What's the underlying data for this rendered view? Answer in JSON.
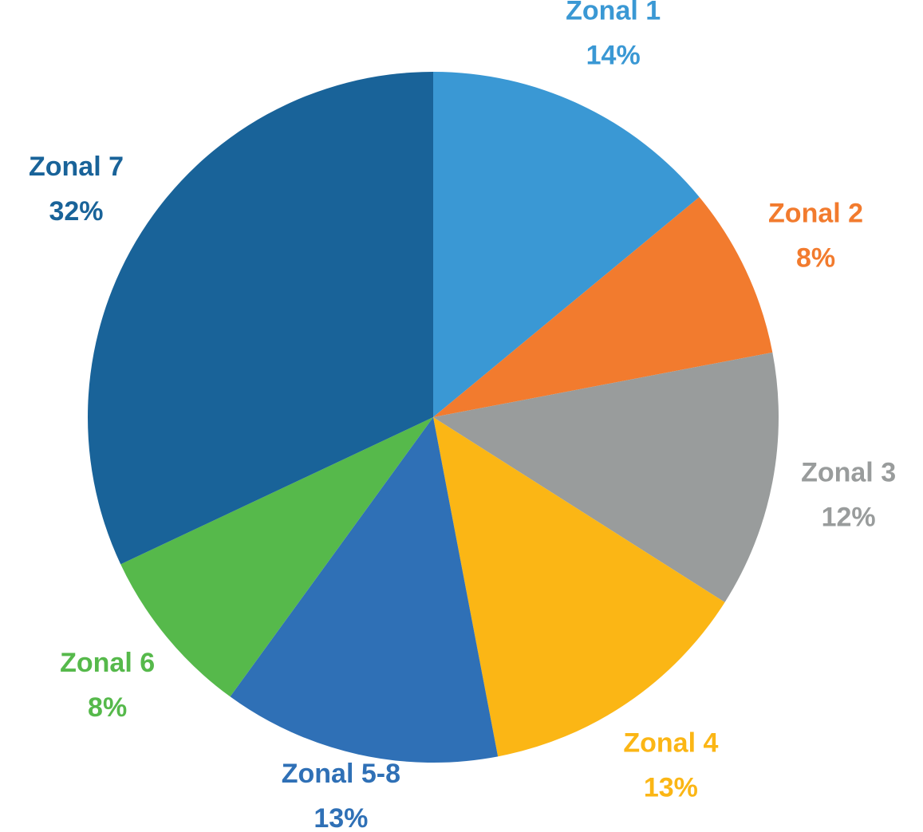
{
  "chart_data": {
    "type": "pie",
    "categories": [
      "Zonal 1",
      "Zonal 2",
      "Zonal 3",
      "Zonal 4",
      "Zonal 5-8",
      "Zonal 6",
      "Zonal 7"
    ],
    "values": [
      14,
      8,
      12,
      13,
      13,
      8,
      32
    ],
    "value_labels": [
      "14%",
      "8%",
      "12%",
      "13%",
      "13%",
      "8%",
      "32%"
    ],
    "colors": [
      "#3a98d4",
      "#f27b2e",
      "#999c9c",
      "#fbb615",
      "#2f70b6",
      "#56b94b",
      "#196399"
    ]
  }
}
